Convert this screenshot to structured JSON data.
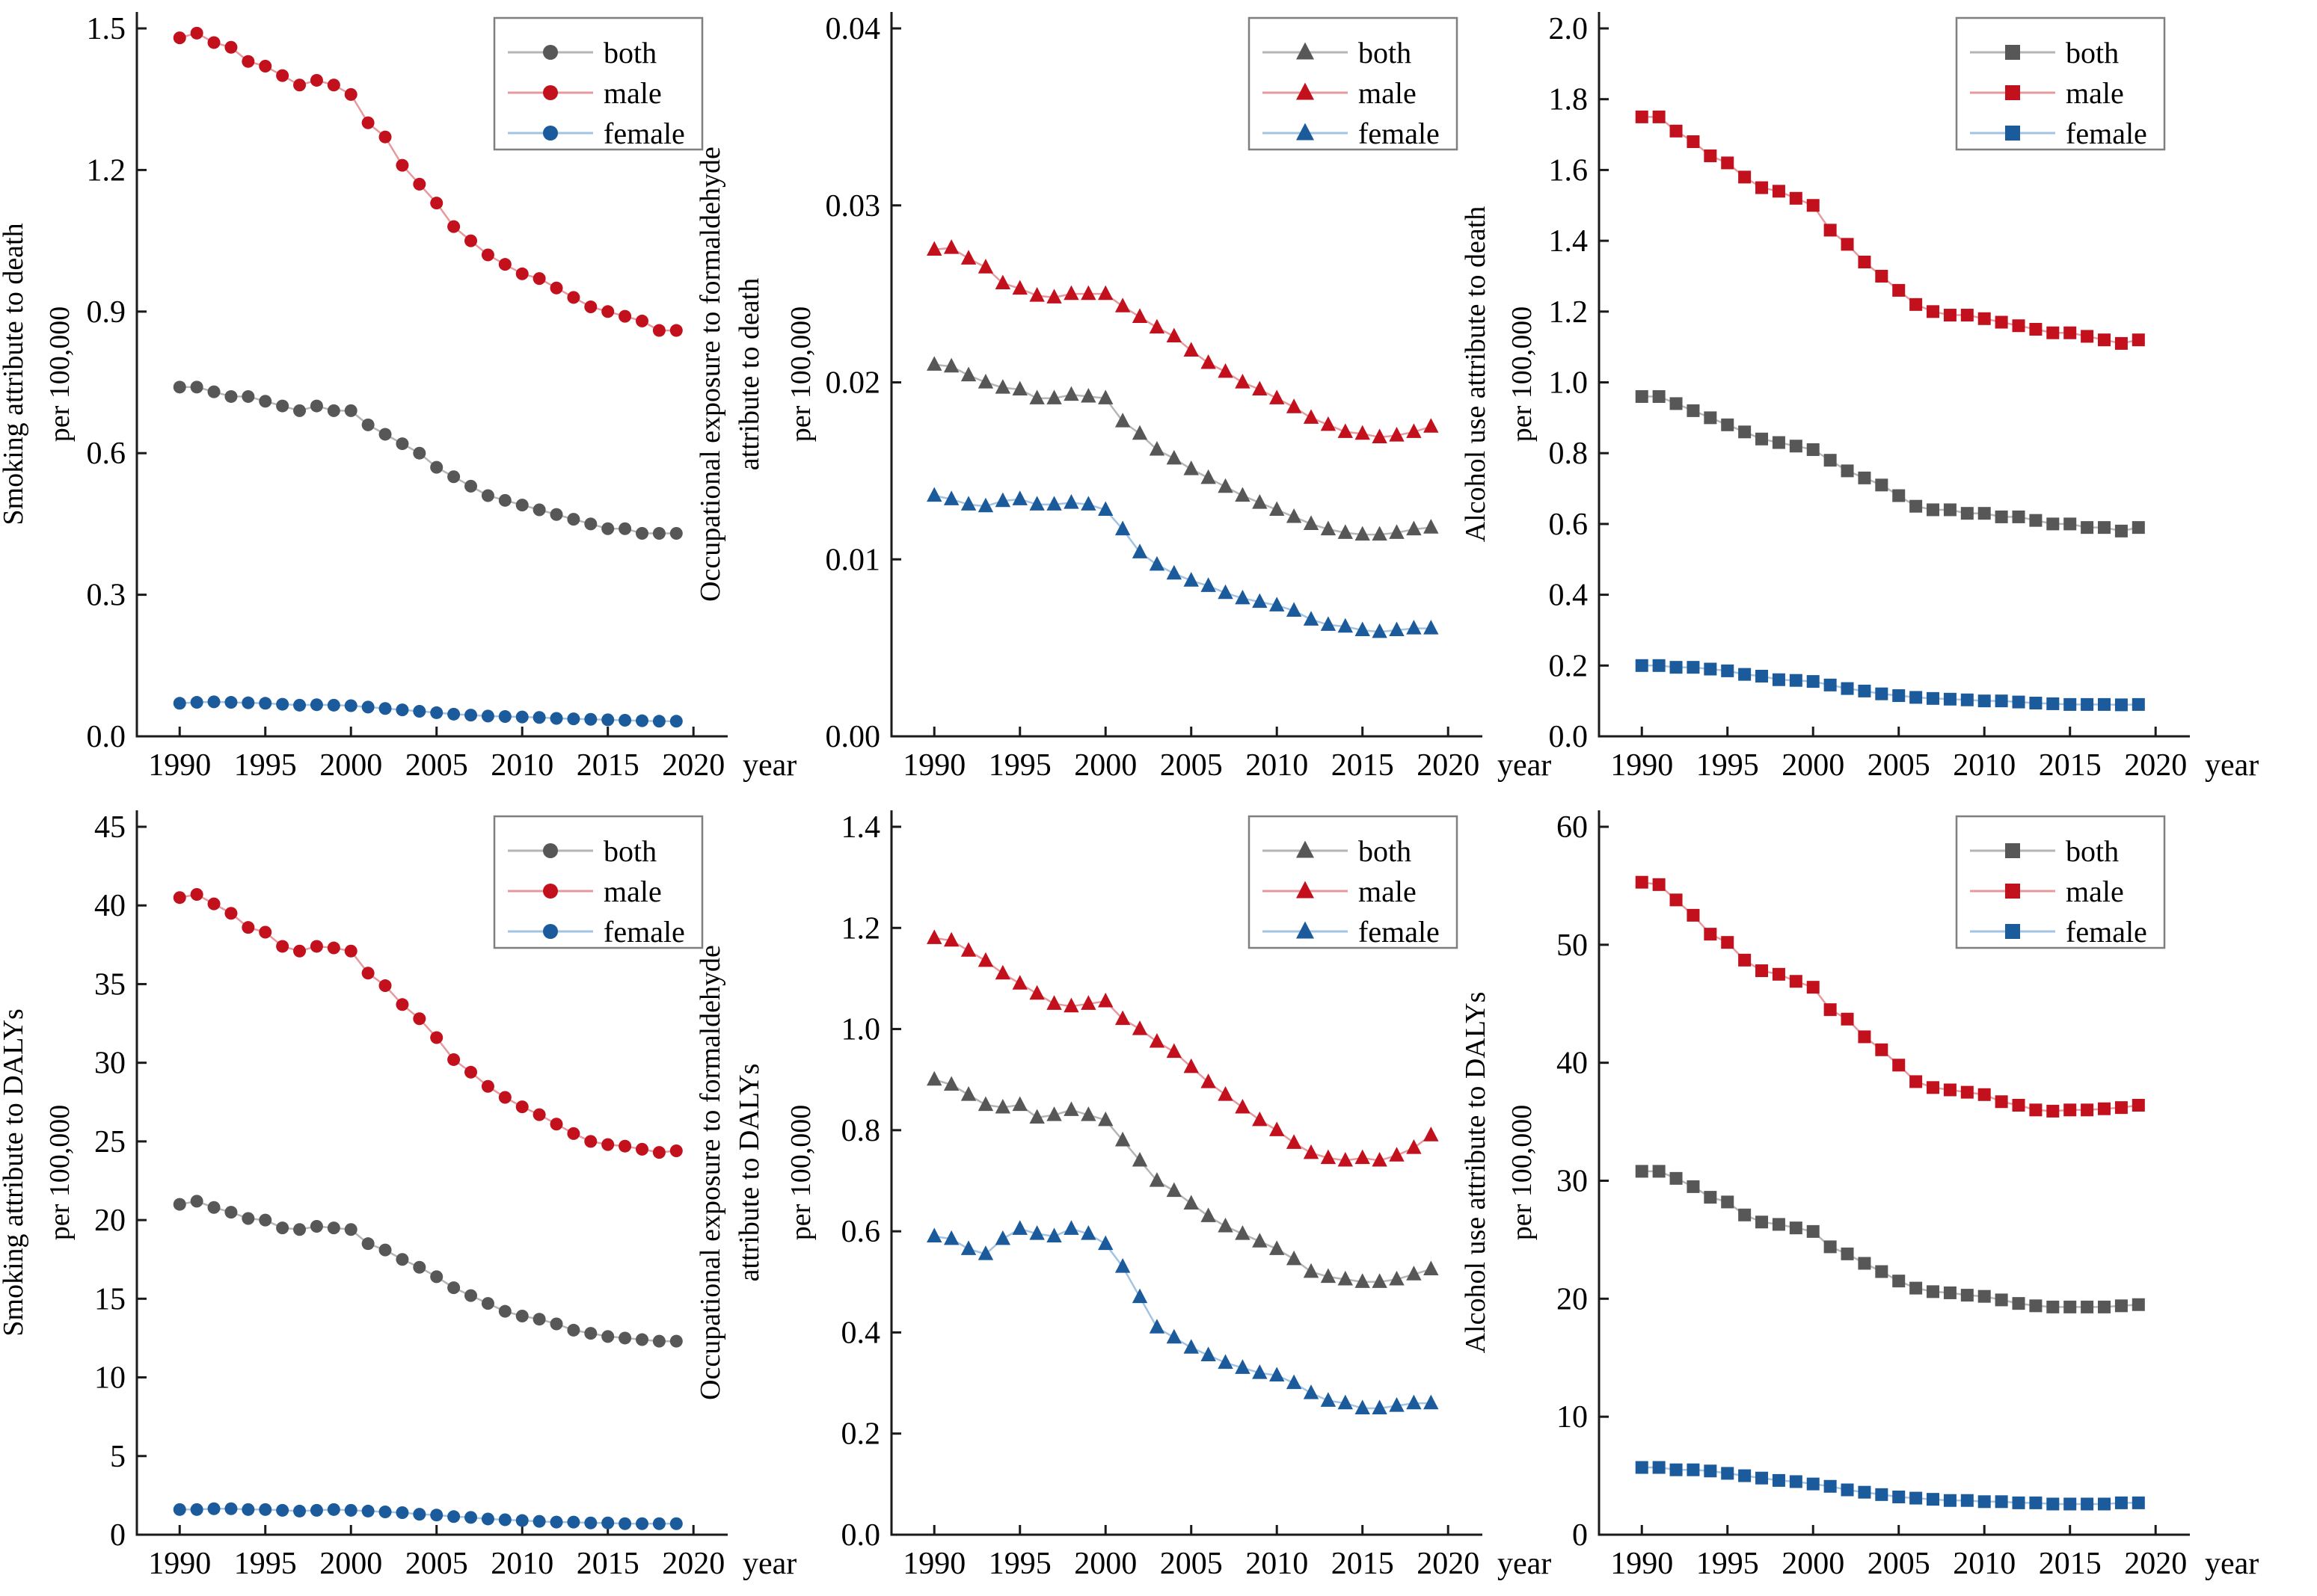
{
  "colors": {
    "background": "#ffffff",
    "axis": "#1a1a1a",
    "text": "#000000",
    "legend_border": "#7f7f7f",
    "both_marker": "#575757",
    "both_line": "#b5b5b5",
    "male_marker": "#c2101c",
    "male_line": "#e79a9e",
    "female_marker": "#1b5a9b",
    "female_line": "#a3c3e2"
  },
  "legend_labels": [
    "both",
    "male",
    "female"
  ],
  "chart_data": [
    {
      "id": "smoking-death",
      "type": "line",
      "marker": "circle",
      "ylabel_lines": [
        "Smoking attribute to death",
        "per 100,000"
      ],
      "xlabel": "year",
      "x_ticks": [
        1990,
        1995,
        2000,
        2005,
        2010,
        2015,
        2020
      ],
      "y_ticks": [
        0.0,
        0.3,
        0.6,
        0.9,
        1.2,
        1.5
      ],
      "y_decimals": 1,
      "xlim": [
        1987.5,
        2022
      ],
      "ylim": [
        0,
        1.5
      ],
      "legend_position": "top-right",
      "x": [
        1990,
        1991,
        1992,
        1993,
        1994,
        1995,
        1996,
        1997,
        1998,
        1999,
        2000,
        2001,
        2002,
        2003,
        2004,
        2005,
        2006,
        2007,
        2008,
        2009,
        2010,
        2011,
        2012,
        2013,
        2014,
        2015,
        2016,
        2017,
        2018,
        2019
      ],
      "series": [
        {
          "name": "both",
          "values": [
            0.74,
            0.74,
            0.73,
            0.72,
            0.72,
            0.71,
            0.7,
            0.69,
            0.7,
            0.69,
            0.69,
            0.66,
            0.64,
            0.62,
            0.6,
            0.57,
            0.55,
            0.53,
            0.51,
            0.5,
            0.49,
            0.48,
            0.47,
            0.46,
            0.45,
            0.44,
            0.44,
            0.43,
            0.43,
            0.43
          ]
        },
        {
          "name": "male",
          "values": [
            1.48,
            1.49,
            1.47,
            1.46,
            1.43,
            1.42,
            1.4,
            1.38,
            1.39,
            1.38,
            1.36,
            1.3,
            1.27,
            1.21,
            1.17,
            1.13,
            1.08,
            1.05,
            1.02,
            1.0,
            0.98,
            0.97,
            0.95,
            0.93,
            0.91,
            0.9,
            0.89,
            0.88,
            0.86,
            0.86
          ]
        },
        {
          "name": "female",
          "values": [
            0.07,
            0.072,
            0.073,
            0.072,
            0.071,
            0.07,
            0.068,
            0.066,
            0.067,
            0.066,
            0.065,
            0.062,
            0.059,
            0.056,
            0.053,
            0.05,
            0.047,
            0.045,
            0.043,
            0.042,
            0.041,
            0.04,
            0.038,
            0.037,
            0.036,
            0.035,
            0.034,
            0.033,
            0.032,
            0.032
          ]
        }
      ]
    },
    {
      "id": "formaldehyde-death",
      "type": "line",
      "marker": "triangle",
      "ylabel_lines": [
        "Occupational exposure to formaldehyde",
        "attribute to death",
        "per 100,000"
      ],
      "xlabel": "year",
      "x_ticks": [
        1990,
        1995,
        2000,
        2005,
        2010,
        2015,
        2020
      ],
      "y_ticks": [
        0.0,
        0.01,
        0.02,
        0.03,
        0.04
      ],
      "y_decimals": 2,
      "xlim": [
        1987.5,
        2022
      ],
      "ylim": [
        0,
        0.04
      ],
      "legend_position": "top-right",
      "x": [
        1990,
        1991,
        1992,
        1993,
        1994,
        1995,
        1996,
        1997,
        1998,
        1999,
        2000,
        2001,
        2002,
        2003,
        2004,
        2005,
        2006,
        2007,
        2008,
        2009,
        2010,
        2011,
        2012,
        2013,
        2014,
        2015,
        2016,
        2017,
        2018,
        2019
      ],
      "series": [
        {
          "name": "both",
          "values": [
            0.021,
            0.0209,
            0.0204,
            0.02,
            0.0197,
            0.0196,
            0.0191,
            0.0191,
            0.0193,
            0.0192,
            0.0191,
            0.0178,
            0.0171,
            0.0162,
            0.0157,
            0.0151,
            0.0146,
            0.0141,
            0.0136,
            0.0132,
            0.0128,
            0.0124,
            0.012,
            0.0117,
            0.0115,
            0.0114,
            0.0114,
            0.0115,
            0.0117,
            0.0118
          ]
        },
        {
          "name": "male",
          "values": [
            0.0275,
            0.0276,
            0.027,
            0.0265,
            0.0256,
            0.0253,
            0.0249,
            0.0248,
            0.025,
            0.025,
            0.025,
            0.0243,
            0.0237,
            0.0231,
            0.0226,
            0.0218,
            0.0211,
            0.0206,
            0.02,
            0.0196,
            0.0191,
            0.0186,
            0.018,
            0.0176,
            0.0172,
            0.0171,
            0.0169,
            0.017,
            0.0172,
            0.0175
          ]
        },
        {
          "name": "female",
          "values": [
            0.0136,
            0.0134,
            0.0131,
            0.013,
            0.0133,
            0.0134,
            0.0131,
            0.0131,
            0.0132,
            0.0131,
            0.0128,
            0.0117,
            0.0104,
            0.0097,
            0.0092,
            0.0088,
            0.0085,
            0.0081,
            0.0078,
            0.0076,
            0.0074,
            0.0071,
            0.0066,
            0.0063,
            0.0062,
            0.006,
            0.0059,
            0.006,
            0.0061,
            0.0061
          ]
        }
      ]
    },
    {
      "id": "alcohol-death",
      "type": "line",
      "marker": "square",
      "ylabel_lines": [
        "Alcohol use attribute to death",
        "per 100,000"
      ],
      "xlabel": "year",
      "x_ticks": [
        1990,
        1995,
        2000,
        2005,
        2010,
        2015,
        2020
      ],
      "y_ticks": [
        0.0,
        0.2,
        0.4,
        0.6,
        0.8,
        1.0,
        1.2,
        1.4,
        1.6,
        1.8,
        2.0
      ],
      "y_decimals": 1,
      "xlim": [
        1987.5,
        2022
      ],
      "ylim": [
        0,
        2.0
      ],
      "legend_position": "top-right",
      "x": [
        1990,
        1991,
        1992,
        1993,
        1994,
        1995,
        1996,
        1997,
        1998,
        1999,
        2000,
        2001,
        2002,
        2003,
        2004,
        2005,
        2006,
        2007,
        2008,
        2009,
        2010,
        2011,
        2012,
        2013,
        2014,
        2015,
        2016,
        2017,
        2018,
        2019
      ],
      "series": [
        {
          "name": "both",
          "values": [
            0.96,
            0.96,
            0.94,
            0.92,
            0.9,
            0.88,
            0.86,
            0.84,
            0.83,
            0.82,
            0.81,
            0.78,
            0.75,
            0.73,
            0.71,
            0.68,
            0.65,
            0.64,
            0.64,
            0.63,
            0.63,
            0.62,
            0.62,
            0.61,
            0.6,
            0.6,
            0.59,
            0.59,
            0.58,
            0.59
          ]
        },
        {
          "name": "male",
          "values": [
            1.75,
            1.75,
            1.71,
            1.68,
            1.64,
            1.62,
            1.58,
            1.55,
            1.54,
            1.52,
            1.5,
            1.43,
            1.39,
            1.34,
            1.3,
            1.26,
            1.22,
            1.2,
            1.19,
            1.19,
            1.18,
            1.17,
            1.16,
            1.15,
            1.14,
            1.14,
            1.13,
            1.12,
            1.11,
            1.12
          ]
        },
        {
          "name": "female",
          "values": [
            0.2,
            0.2,
            0.195,
            0.195,
            0.19,
            0.185,
            0.175,
            0.17,
            0.16,
            0.158,
            0.155,
            0.145,
            0.135,
            0.128,
            0.12,
            0.115,
            0.11,
            0.107,
            0.105,
            0.103,
            0.1,
            0.1,
            0.097,
            0.094,
            0.092,
            0.09,
            0.09,
            0.09,
            0.089,
            0.09
          ]
        }
      ]
    },
    {
      "id": "smoking-dalys",
      "type": "line",
      "marker": "circle",
      "ylabel_lines": [
        "Smoking attribute to DALYs",
        "per 100,000"
      ],
      "xlabel": "year",
      "x_ticks": [
        1990,
        1995,
        2000,
        2005,
        2010,
        2015,
        2020
      ],
      "y_ticks": [
        0,
        5,
        10,
        15,
        20,
        25,
        30,
        35,
        40,
        45
      ],
      "y_decimals": 0,
      "xlim": [
        1987.5,
        2022
      ],
      "ylim": [
        0,
        45
      ],
      "legend_position": "top-right",
      "x": [
        1990,
        1991,
        1992,
        1993,
        1994,
        1995,
        1996,
        1997,
        1998,
        1999,
        2000,
        2001,
        2002,
        2003,
        2004,
        2005,
        2006,
        2007,
        2008,
        2009,
        2010,
        2011,
        2012,
        2013,
        2014,
        2015,
        2016,
        2017,
        2018,
        2019
      ],
      "series": [
        {
          "name": "both",
          "values": [
            21.0,
            21.2,
            20.8,
            20.5,
            20.1,
            20.0,
            19.5,
            19.4,
            19.6,
            19.5,
            19.4,
            18.5,
            18.1,
            17.5,
            17.0,
            16.4,
            15.7,
            15.2,
            14.7,
            14.2,
            13.9,
            13.7,
            13.4,
            13.0,
            12.8,
            12.6,
            12.5,
            12.4,
            12.3,
            12.3
          ]
        },
        {
          "name": "male",
          "values": [
            40.5,
            40.7,
            40.1,
            39.5,
            38.6,
            38.3,
            37.4,
            37.1,
            37.4,
            37.3,
            37.1,
            35.7,
            34.9,
            33.7,
            32.8,
            31.6,
            30.2,
            29.4,
            28.5,
            27.8,
            27.2,
            26.7,
            26.1,
            25.5,
            25.0,
            24.8,
            24.7,
            24.5,
            24.3,
            24.4
          ]
        },
        {
          "name": "female",
          "values": [
            1.6,
            1.6,
            1.65,
            1.65,
            1.6,
            1.6,
            1.55,
            1.5,
            1.55,
            1.6,
            1.55,
            1.5,
            1.45,
            1.4,
            1.3,
            1.25,
            1.15,
            1.1,
            1.0,
            0.95,
            0.9,
            0.85,
            0.8,
            0.8,
            0.75,
            0.75,
            0.7,
            0.7,
            0.7,
            0.7
          ]
        }
      ]
    },
    {
      "id": "formaldehyde-dalys",
      "type": "line",
      "marker": "triangle",
      "ylabel_lines": [
        "Occupational exposure to formaldehyde",
        "attribute to DALYs",
        "per 100,000"
      ],
      "xlabel": "year",
      "x_ticks": [
        1990,
        1995,
        2000,
        2005,
        2010,
        2015,
        2020
      ],
      "y_ticks": [
        0.0,
        0.2,
        0.4,
        0.6,
        0.8,
        1.0,
        1.2,
        1.4
      ],
      "y_decimals": 1,
      "xlim": [
        1987.5,
        2022
      ],
      "ylim": [
        0,
        1.4
      ],
      "legend_position": "top-right",
      "x": [
        1990,
        1991,
        1992,
        1993,
        1994,
        1995,
        1996,
        1997,
        1998,
        1999,
        2000,
        2001,
        2002,
        2003,
        2004,
        2005,
        2006,
        2007,
        2008,
        2009,
        2010,
        2011,
        2012,
        2013,
        2014,
        2015,
        2016,
        2017,
        2018,
        2019
      ],
      "series": [
        {
          "name": "both",
          "values": [
            0.9,
            0.89,
            0.87,
            0.85,
            0.845,
            0.85,
            0.825,
            0.83,
            0.84,
            0.83,
            0.82,
            0.78,
            0.74,
            0.7,
            0.68,
            0.655,
            0.63,
            0.61,
            0.595,
            0.58,
            0.565,
            0.545,
            0.52,
            0.51,
            0.505,
            0.5,
            0.5,
            0.505,
            0.515,
            0.525
          ]
        },
        {
          "name": "male",
          "values": [
            1.18,
            1.175,
            1.155,
            1.135,
            1.11,
            1.09,
            1.07,
            1.05,
            1.045,
            1.05,
            1.055,
            1.02,
            1.0,
            0.975,
            0.955,
            0.925,
            0.895,
            0.87,
            0.845,
            0.82,
            0.8,
            0.775,
            0.755,
            0.745,
            0.74,
            0.745,
            0.74,
            0.75,
            0.765,
            0.79
          ]
        },
        {
          "name": "female",
          "values": [
            0.59,
            0.585,
            0.565,
            0.555,
            0.585,
            0.605,
            0.595,
            0.59,
            0.605,
            0.595,
            0.575,
            0.53,
            0.47,
            0.41,
            0.39,
            0.37,
            0.355,
            0.34,
            0.33,
            0.32,
            0.315,
            0.3,
            0.28,
            0.265,
            0.26,
            0.25,
            0.25,
            0.255,
            0.26,
            0.26
          ]
        }
      ]
    },
    {
      "id": "alcohol-dalys",
      "type": "line",
      "marker": "square",
      "ylabel_lines": [
        "Alcohol use attribute to DALYs",
        "per 100,000"
      ],
      "xlabel": "year",
      "x_ticks": [
        1990,
        1995,
        2000,
        2005,
        2010,
        2015,
        2020
      ],
      "y_ticks": [
        0,
        10,
        20,
        30,
        40,
        50,
        60
      ],
      "y_decimals": 0,
      "xlim": [
        1987.5,
        2022
      ],
      "ylim": [
        0,
        60
      ],
      "legend_position": "top-right",
      "x": [
        1990,
        1991,
        1992,
        1993,
        1994,
        1995,
        1996,
        1997,
        1998,
        1999,
        2000,
        2001,
        2002,
        2003,
        2004,
        2005,
        2006,
        2007,
        2008,
        2009,
        2010,
        2011,
        2012,
        2013,
        2014,
        2015,
        2016,
        2017,
        2018,
        2019
      ],
      "series": [
        {
          "name": "both",
          "values": [
            30.8,
            30.8,
            30.2,
            29.5,
            28.6,
            28.2,
            27.1,
            26.5,
            26.3,
            26.0,
            25.7,
            24.4,
            23.8,
            23.0,
            22.3,
            21.5,
            20.9,
            20.6,
            20.5,
            20.3,
            20.2,
            19.9,
            19.6,
            19.4,
            19.3,
            19.3,
            19.3,
            19.3,
            19.4,
            19.5
          ]
        },
        {
          "name": "male",
          "values": [
            55.3,
            55.1,
            53.8,
            52.5,
            50.9,
            50.2,
            48.7,
            47.8,
            47.5,
            46.9,
            46.4,
            44.5,
            43.7,
            42.2,
            41.1,
            39.8,
            38.4,
            37.9,
            37.7,
            37.5,
            37.3,
            36.7,
            36.4,
            36.0,
            35.9,
            36.0,
            36.0,
            36.1,
            36.2,
            36.4
          ]
        },
        {
          "name": "female",
          "values": [
            5.7,
            5.7,
            5.5,
            5.5,
            5.4,
            5.2,
            5.0,
            4.8,
            4.6,
            4.5,
            4.3,
            4.1,
            3.8,
            3.6,
            3.4,
            3.2,
            3.1,
            3.0,
            2.9,
            2.9,
            2.8,
            2.8,
            2.7,
            2.7,
            2.6,
            2.6,
            2.6,
            2.6,
            2.7,
            2.7
          ]
        }
      ]
    }
  ]
}
